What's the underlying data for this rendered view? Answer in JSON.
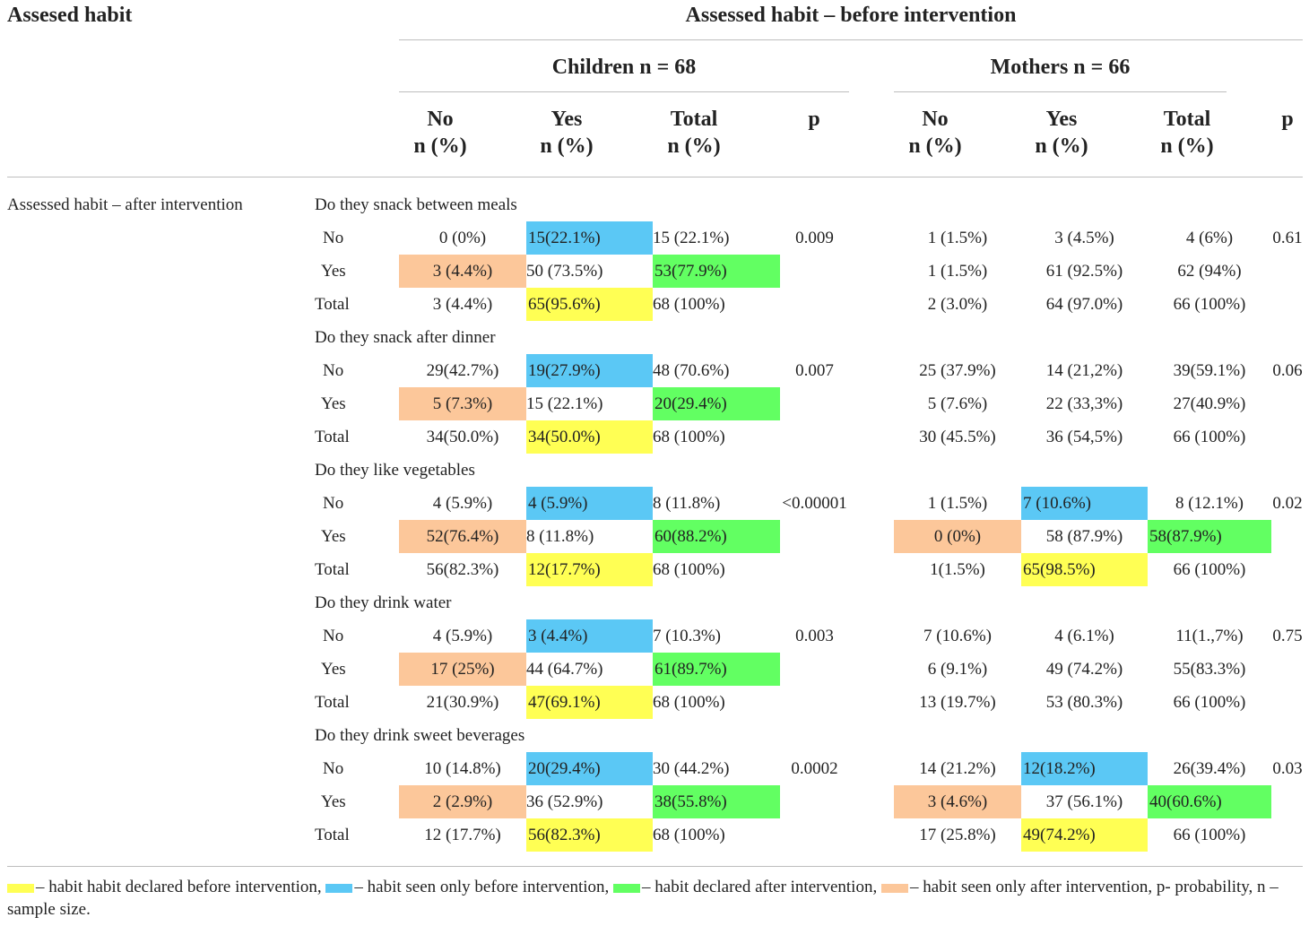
{
  "header": {
    "corner": "Assesed habit",
    "spanner": "Assessed habit – before intervention",
    "children_group": "Children n = 68",
    "mothers_group": "Mothers n = 66",
    "col_no": "No",
    "col_yes": "Yes",
    "col_total": "Total",
    "col_unit": "n (%)",
    "col_p": "p"
  },
  "row_group_label": "Assessed habit – after intervention",
  "row_labels": {
    "no": "No",
    "yes": "Yes",
    "total": "Total"
  },
  "colors": {
    "yellow": "#ffff54",
    "blue": "#5bc8f5",
    "green": "#62ff62",
    "orange": "#fcc79a"
  },
  "sections": [
    {
      "title": "Do they snack between meals",
      "children": {
        "no": [
          "0 (0%)",
          "15(22.1%)",
          "15 (22.1%)"
        ],
        "yes": [
          "3 (4.4%)",
          "50 (73.5%)",
          "53(77.9%)"
        ],
        "total": [
          "3 (4.4%)",
          "65(95.6%)",
          "68 (100%)"
        ],
        "p": "0.009",
        "highlighted": true
      },
      "mothers": {
        "no": [
          "1 (1.5%)",
          "3 (4.5%)",
          "4 (6%)"
        ],
        "yes": [
          "1 (1.5%)",
          "61 (92.5%)",
          "62 (94%)"
        ],
        "total": [
          "2 (3.0%)",
          "64 (97.0%)",
          "66 (100%)"
        ],
        "p": "0.61",
        "highlighted": false
      }
    },
    {
      "title": "Do they snack after dinner",
      "children": {
        "no": [
          "29(42.7%)",
          "19(27.9%)",
          "48 (70.6%)"
        ],
        "yes": [
          "5 (7.3%)",
          "15 (22.1%)",
          "20(29.4%)"
        ],
        "total": [
          "34(50.0%)",
          "34(50.0%)",
          "68 (100%)"
        ],
        "p": "0.007",
        "highlighted": true
      },
      "mothers": {
        "no": [
          "25 (37.9%)",
          "14 (21,2%)",
          "39(59.1%)"
        ],
        "yes": [
          "5 (7.6%)",
          "22 (33,3%)",
          "27(40.9%)"
        ],
        "total": [
          "30 (45.5%)",
          "36 (54,5%)",
          "66 (100%)"
        ],
        "p": "0.06",
        "highlighted": false
      }
    },
    {
      "title": "Do they like vegetables",
      "children": {
        "no": [
          "4 (5.9%)",
          "4 (5.9%)",
          "8 (11.8%)"
        ],
        "yes": [
          "52(76.4%)",
          "8 (11.8%)",
          "60(88.2%)"
        ],
        "total": [
          "56(82.3%)",
          "12(17.7%)",
          "68 (100%)"
        ],
        "p": "<0.00001",
        "highlighted": true
      },
      "mothers": {
        "no": [
          "1 (1.5%)",
          "7 (10.6%)",
          "8 (12.1%)"
        ],
        "yes": [
          "0 (0%)",
          "58 (87.9%)",
          "58(87.9%)"
        ],
        "total": [
          "1(1.5%)",
          "65(98.5%)",
          "66 (100%)"
        ],
        "p": "0.02",
        "highlighted": true
      }
    },
    {
      "title": "Do they drink water",
      "children": {
        "no": [
          "4 (5.9%)",
          "3 (4.4%)",
          "7 (10.3%)"
        ],
        "yes": [
          "17 (25%)",
          "44 (64.7%)",
          "61(89.7%)"
        ],
        "total": [
          "21(30.9%)",
          "47(69.1%)",
          "68 (100%)"
        ],
        "p": "0.003",
        "highlighted": true
      },
      "mothers": {
        "no": [
          "7 (10.6%)",
          "4 (6.1%)",
          "11(1.,7%)"
        ],
        "yes": [
          "6 (9.1%)",
          "49 (74.2%)",
          "55(83.3%)"
        ],
        "total": [
          "13 (19.7%)",
          "53 (80.3%)",
          "66 (100%)"
        ],
        "p": "0.75",
        "highlighted": false
      }
    },
    {
      "title": "Do they drink sweet beverages",
      "children": {
        "no": [
          "10 (14.8%)",
          "20(29.4%)",
          "30 (44.2%)"
        ],
        "yes": [
          "2 (2.9%)",
          "36 (52.9%)",
          "38(55.8%)"
        ],
        "total": [
          "12 (17.7%)",
          "56(82.3%)",
          "68 (100%)"
        ],
        "p": "0.0002",
        "highlighted": true
      },
      "mothers": {
        "no": [
          "14 (21.2%)",
          "12(18.2%)",
          "26(39.4%)"
        ],
        "yes": [
          "3 (4.6%)",
          "37 (56.1%)",
          "40(60.6%)"
        ],
        "total": [
          "17 (25.8%)",
          "49(74.2%)",
          "66 (100%)"
        ],
        "p": "0.03",
        "highlighted": true
      }
    }
  ],
  "legend": {
    "yellow_text": "– habit habit declared before intervention,",
    "blue_text": "– habit seen only before intervention,",
    "green_text": "– habit declared after intervention,",
    "orange_text": "– habit seen only after intervention, p- probability, n –",
    "line2": "sample size."
  }
}
